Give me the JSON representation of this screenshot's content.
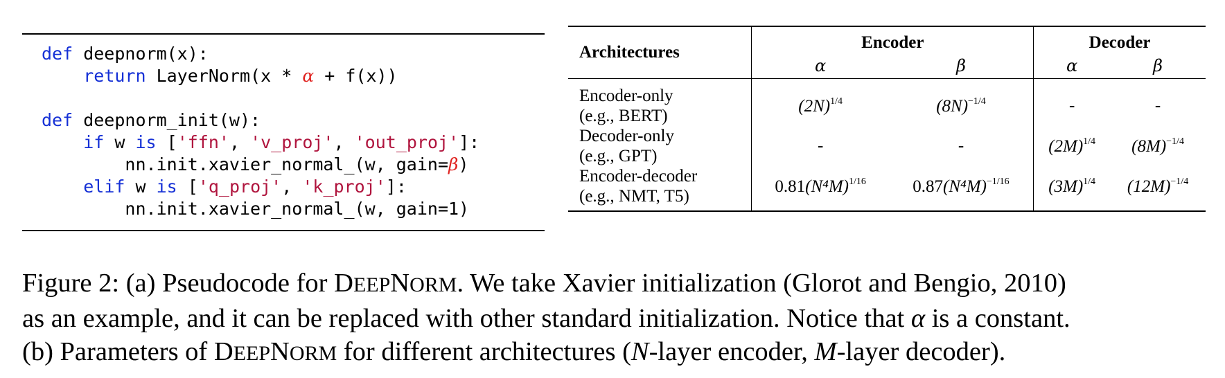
{
  "code": {
    "lines": [
      [
        {
          "t": "def",
          "c": "kw"
        },
        {
          "t": " deepnorm(x):"
        }
      ],
      [
        {
          "t": "    "
        },
        {
          "t": "return",
          "c": "kw"
        },
        {
          "t": " LayerNorm(x * "
        },
        {
          "t": "α",
          "c": "greek"
        },
        {
          "t": " + f(x))"
        }
      ],
      [
        {
          "t": ""
        }
      ],
      [
        {
          "t": "def",
          "c": "kw"
        },
        {
          "t": " deepnorm_init(w):"
        }
      ],
      [
        {
          "t": "    "
        },
        {
          "t": "if",
          "c": "kw"
        },
        {
          "t": " w "
        },
        {
          "t": "is",
          "c": "kw"
        },
        {
          "t": " ["
        },
        {
          "t": "'ffn'",
          "c": "str"
        },
        {
          "t": ", "
        },
        {
          "t": "'v_proj'",
          "c": "str"
        },
        {
          "t": ", "
        },
        {
          "t": "'out_proj'",
          "c": "str"
        },
        {
          "t": "]:"
        }
      ],
      [
        {
          "t": "        nn.init.xavier_normal_(w, gain="
        },
        {
          "t": "β",
          "c": "greek"
        },
        {
          "t": ")"
        }
      ],
      [
        {
          "t": "    "
        },
        {
          "t": "elif",
          "c": "kw"
        },
        {
          "t": " w "
        },
        {
          "t": "is",
          "c": "kw"
        },
        {
          "t": " ["
        },
        {
          "t": "'q_proj'",
          "c": "str"
        },
        {
          "t": ", "
        },
        {
          "t": "'k_proj'",
          "c": "str"
        },
        {
          "t": "]:"
        }
      ],
      [
        {
          "t": "        nn.init.xavier_normal_(w, gain=1)"
        }
      ]
    ]
  },
  "table": {
    "arch_header": "Architectures",
    "encoder_header": "Encoder",
    "decoder_header": "Decoder",
    "alpha": "α",
    "beta": "β",
    "rows": [
      {
        "arch": [
          "Encoder-only",
          "(e.g., BERT)"
        ],
        "enc_alpha": {
          "coef": "",
          "base": "(2N)",
          "exp": "1/4"
        },
        "enc_beta": {
          "coef": "",
          "base": "(8N)",
          "exp": "−1/4"
        },
        "dec_alpha": {
          "text": "-"
        },
        "dec_beta": {
          "text": "-"
        }
      },
      {
        "arch": [
          "Decoder-only",
          "(e.g., GPT)"
        ],
        "enc_alpha": {
          "text": "-"
        },
        "enc_beta": {
          "text": "-"
        },
        "dec_alpha": {
          "coef": "",
          "base": "(2M)",
          "exp": "1/4"
        },
        "dec_beta": {
          "coef": "",
          "base": "(8M)",
          "exp": "−1/4"
        }
      },
      {
        "arch": [
          "Encoder-decoder",
          "(e.g., NMT, T5)"
        ],
        "enc_alpha": {
          "coef": "0.81",
          "base": "(N⁴M)",
          "exp": "1/16"
        },
        "enc_beta": {
          "coef": "0.87",
          "base": "(N⁴M)",
          "exp": "−1/16"
        },
        "dec_alpha": {
          "coef": "",
          "base": "(3M)",
          "exp": "1/4"
        },
        "dec_beta": {
          "coef": "",
          "base": "(12M)",
          "exp": "−1/4"
        }
      }
    ]
  },
  "caption": {
    "line1": [
      {
        "t": "Figure 2: (a) Pseudocode for "
      },
      {
        "t": "D",
        "s": "sc-big"
      },
      {
        "t": "EEP",
        "s": "sc-small"
      },
      {
        "t": "N",
        "s": "sc-big"
      },
      {
        "t": "ORM",
        "s": "sc-small"
      },
      {
        "t": ". We take Xavier initialization (Glorot and Bengio, 2010)"
      }
    ],
    "line2": [
      {
        "t": "as an example, and it can be replaced with other standard initialization. Notice that "
      },
      {
        "t": "α",
        "s": "ital"
      },
      {
        "t": " is a constant."
      }
    ],
    "line3": [
      {
        "t": "(b) Parameters of "
      },
      {
        "t": "D",
        "s": "sc-big"
      },
      {
        "t": "EEP",
        "s": "sc-small"
      },
      {
        "t": "N",
        "s": "sc-big"
      },
      {
        "t": "ORM",
        "s": "sc-small"
      },
      {
        "t": " for different architectures ("
      },
      {
        "t": "N",
        "s": "ital"
      },
      {
        "t": "-layer encoder, "
      },
      {
        "t": "M",
        "s": "ital"
      },
      {
        "t": "-layer decoder)."
      }
    ]
  }
}
